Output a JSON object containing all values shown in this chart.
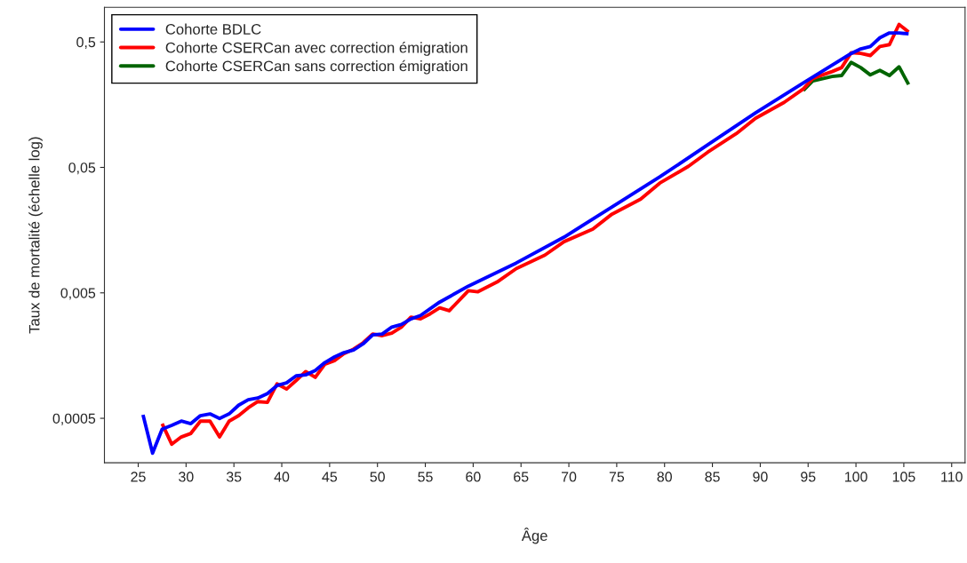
{
  "chart_data": {
    "type": "line",
    "xlabel": "Âge",
    "ylabel": "Taux de mortalité (échelle log)",
    "log": "y",
    "grid": false,
    "legend": "top left",
    "line_style": "solid",
    "marker": "none",
    "xlim": [
      21.47,
      111.4
    ],
    "xticks": [
      25,
      30,
      35,
      40,
      45,
      50,
      55,
      60,
      65,
      70,
      75,
      80,
      85,
      90,
      95,
      100,
      105,
      110
    ],
    "ylim": [
      0.000221,
      0.944
    ],
    "yticks": [
      {
        "value": 0.0005,
        "label": "0,0005"
      },
      {
        "value": 0.005,
        "label": "0,005"
      },
      {
        "value": 0.05,
        "label": "0,05"
      },
      {
        "value": 0.5,
        "label": "0,5"
      }
    ],
    "series": [
      {
        "name": "Cohorte BDLC",
        "color": "#0000ff",
        "x": [
          25.5,
          26.5,
          27.5,
          28.5,
          29.5,
          30.5,
          31.5,
          32.5,
          33.5,
          34.5,
          35.5,
          36.5,
          37.5,
          38.5,
          39.5,
          40.5,
          41.5,
          42.5,
          43.5,
          44.5,
          45.5,
          46.5,
          47.5,
          48.5,
          49.5,
          50.5,
          51.5,
          52.5,
          53.5,
          54.5,
          56.5,
          59.5,
          64.5,
          69.5,
          74.5,
          79.5,
          84.5,
          89.5,
          94.5,
          99.5,
          100.5,
          101.5,
          102.5,
          103.5,
          104.5,
          105.5
        ],
        "values": [
          0.000533,
          0.000264,
          0.00041,
          0.000439,
          0.000475,
          0.000453,
          0.000525,
          0.000542,
          0.000499,
          0.000542,
          0.000637,
          0.000703,
          0.000726,
          0.000787,
          0.000912,
          0.000958,
          0.00109,
          0.00111,
          0.0012,
          0.00139,
          0.00154,
          0.00167,
          0.00175,
          0.00196,
          0.00231,
          0.00235,
          0.00267,
          0.0028,
          0.0031,
          0.0033,
          0.00422,
          0.00566,
          0.00865,
          0.0139,
          0.0242,
          0.042,
          0.0755,
          0.136,
          0.236,
          0.405,
          0.44,
          0.46,
          0.54,
          0.59,
          0.59,
          0.58
        ]
      },
      {
        "name": "Cohorte CSERCan avec correction émigration",
        "color": "#ff0000",
        "x": [
          27.5,
          28.5,
          29.5,
          30.5,
          31.5,
          32.5,
          33.5,
          34.5,
          35.5,
          36.5,
          37.5,
          38.5,
          39.5,
          40.5,
          41.5,
          42.5,
          43.5,
          44.5,
          45.5,
          46.5,
          47.5,
          48.5,
          49.5,
          50.5,
          51.5,
          52.5,
          53.5,
          54.5,
          55.5,
          56.5,
          57.5,
          59.5,
          60.5,
          62.5,
          64.5,
          67.5,
          69.5,
          72.5,
          74.5,
          77.5,
          79.5,
          82.5,
          84.5,
          87.5,
          89.5,
          92.5,
          94.5,
          95.5,
          96.5,
          97.5,
          98.5,
          99.5,
          100.5,
          101.5,
          102.5,
          103.5,
          104.5,
          105.5
        ],
        "values": [
          0.000453,
          0.000311,
          0.000355,
          0.000379,
          0.000475,
          0.000475,
          0.000355,
          0.000475,
          0.000525,
          0.000607,
          0.00068,
          0.00067,
          0.00094,
          0.000855,
          0.001,
          0.00118,
          0.00106,
          0.00135,
          0.00144,
          0.00164,
          0.00178,
          0.002,
          0.00235,
          0.00228,
          0.00239,
          0.00267,
          0.0032,
          0.0031,
          0.0034,
          0.0038,
          0.0036,
          0.0052,
          0.0051,
          0.0061,
          0.0078,
          0.01,
          0.0128,
          0.0161,
          0.0212,
          0.0279,
          0.0375,
          0.051,
          0.066,
          0.093,
          0.123,
          0.165,
          0.211,
          0.256,
          0.273,
          0.29,
          0.312,
          0.41,
          0.405,
          0.39,
          0.46,
          0.476,
          0.69,
          0.6
        ]
      },
      {
        "name": "Cohorte CSERCan sans correction émigration",
        "color": "#006400",
        "x": [
          94.5,
          95.5,
          96.5,
          97.5,
          98.5,
          99.5,
          100.5,
          101.5,
          102.5,
          103.5,
          104.5,
          105.5
        ],
        "values": [
          0.205,
          0.245,
          0.255,
          0.265,
          0.27,
          0.344,
          0.312,
          0.273,
          0.297,
          0.27,
          0.317,
          0.229
        ]
      }
    ]
  }
}
